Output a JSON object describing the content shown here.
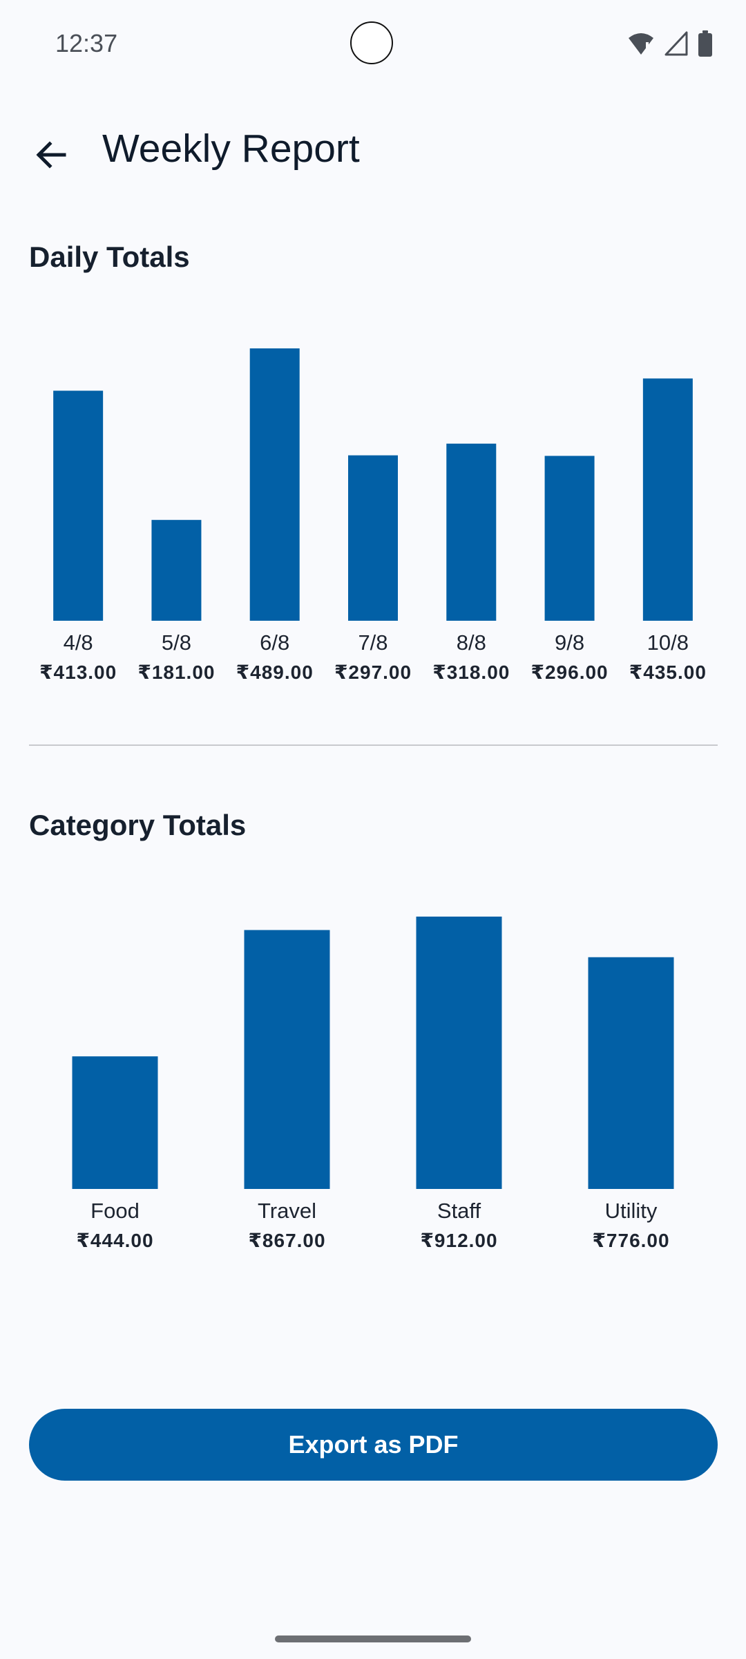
{
  "status_bar": {
    "time": "12:37",
    "icons": [
      "wifi-alert-icon",
      "signal-icon",
      "battery-icon"
    ]
  },
  "app_bar": {
    "back_icon": "arrow-left-icon",
    "title": "Weekly Report"
  },
  "sections": {
    "daily_title": "Daily Totals",
    "category_title": "Category Totals"
  },
  "colors": {
    "bar": "#0260a6",
    "background": "#f9fafd",
    "text": "#0f1b2b"
  },
  "chart_data": [
    {
      "type": "bar",
      "title": "Daily Totals",
      "categories": [
        "4/8",
        "5/8",
        "6/8",
        "7/8",
        "8/8",
        "9/8",
        "10/8"
      ],
      "values": [
        413.0,
        181.0,
        489.0,
        297.0,
        318.0,
        296.0,
        435.0
      ],
      "value_labels": [
        "₹413.00",
        "₹181.00",
        "₹489.00",
        "₹297.00",
        "₹318.00",
        "₹296.00",
        "₹435.00"
      ],
      "ylim": [
        0,
        489
      ],
      "grid": false
    },
    {
      "type": "bar",
      "title": "Category Totals",
      "categories": [
        "Food",
        "Travel",
        "Staff",
        "Utility"
      ],
      "values": [
        444.0,
        867.0,
        912.0,
        776.0
      ],
      "value_labels": [
        "₹444.00",
        "₹867.00",
        "₹912.00",
        "₹776.00"
      ],
      "ylim": [
        0,
        912
      ],
      "grid": false
    }
  ],
  "export_button": {
    "label": "Export as PDF"
  }
}
